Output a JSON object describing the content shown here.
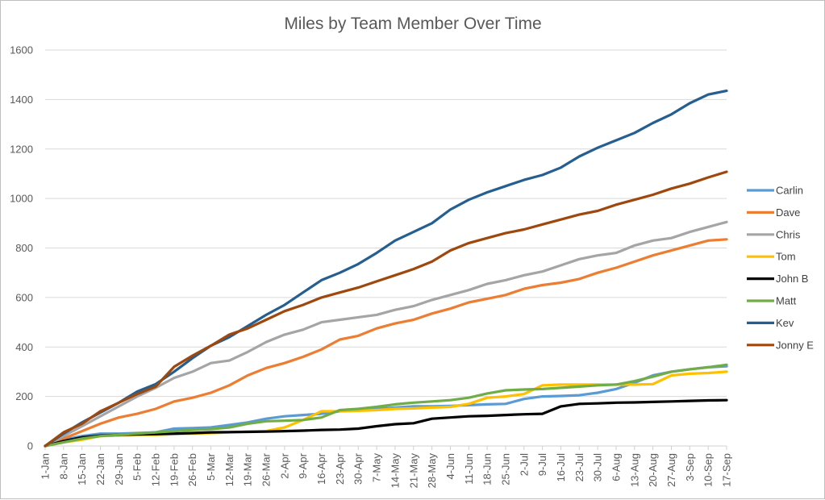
{
  "chart_data": {
    "type": "line",
    "title": "Miles by Team Member Over Time",
    "xlabel": "",
    "ylabel": "",
    "ylim": [
      0,
      1600
    ],
    "yticks": [
      0,
      200,
      400,
      600,
      800,
      1000,
      1200,
      1400,
      1600
    ],
    "grid": true,
    "legend_position": "right",
    "x_tick_labels": [
      "1-Jan",
      "8-Jan",
      "15-Jan",
      "22-Jan",
      "29-Jan",
      "5-Feb",
      "12-Feb",
      "19-Feb",
      "26-Feb",
      "5-Mar",
      "12-Mar",
      "19-Mar",
      "26-Mar",
      "2-Apr",
      "9-Apr",
      "16-Apr",
      "23-Apr",
      "30-Apr",
      "7-May",
      "14-May",
      "21-May",
      "28-May",
      "4-Jun",
      "11-Jun",
      "18-Jun",
      "25-Jun",
      "2-Jul",
      "9-Jul",
      "16-Jul",
      "23-Jul",
      "30-Jul",
      "6-Aug",
      "13-Aug",
      "20-Aug",
      "27-Aug",
      "3-Sep",
      "10-Sep",
      "17-Sep"
    ],
    "x": [
      "1-Jan",
      "8-Jan",
      "15-Jan",
      "22-Jan",
      "29-Jan",
      "5-Feb",
      "12-Feb",
      "19-Feb",
      "26-Feb",
      "5-Mar",
      "12-Mar",
      "19-Mar",
      "26-Mar",
      "2-Apr",
      "9-Apr",
      "16-Apr",
      "23-Apr",
      "30-Apr",
      "7-May",
      "14-May",
      "21-May",
      "28-May",
      "4-Jun",
      "11-Jun",
      "18-Jun",
      "25-Jun",
      "2-Jul",
      "9-Jul",
      "16-Jul",
      "23-Jul",
      "30-Jul",
      "6-Aug",
      "13-Aug",
      "20-Aug",
      "27-Aug",
      "3-Sep",
      "10-Sep",
      "17-Sep"
    ],
    "series": [
      {
        "name": "Carlin",
        "color": "#5b9bd5",
        "values": [
          0,
          25,
          40,
          50,
          50,
          52,
          55,
          70,
          72,
          75,
          85,
          95,
          110,
          120,
          125,
          130,
          140,
          145,
          150,
          155,
          160,
          160,
          162,
          165,
          168,
          170,
          190,
          200,
          202,
          205,
          215,
          230,
          255,
          285,
          300,
          310,
          318,
          322
        ]
      },
      {
        "name": "Dave",
        "color": "#ed7d31",
        "values": [
          0,
          30,
          60,
          90,
          115,
          130,
          150,
          180,
          195,
          215,
          245,
          285,
          315,
          335,
          360,
          390,
          430,
          445,
          475,
          495,
          510,
          535,
          555,
          580,
          595,
          610,
          635,
          650,
          660,
          675,
          700,
          720,
          745,
          770,
          790,
          810,
          830,
          835
        ]
      },
      {
        "name": "Chris",
        "color": "#a5a5a5",
        "values": [
          0,
          40,
          80,
          120,
          160,
          200,
          235,
          275,
          300,
          335,
          345,
          380,
          420,
          450,
          470,
          500,
          510,
          520,
          530,
          550,
          565,
          590,
          610,
          630,
          655,
          670,
          690,
          705,
          730,
          755,
          770,
          780,
          810,
          830,
          840,
          865,
          885,
          905
        ]
      },
      {
        "name": "Tom",
        "color": "#ffc000",
        "values": [
          0,
          15,
          25,
          40,
          42,
          45,
          45,
          48,
          50,
          52,
          55,
          58,
          60,
          75,
          105,
          140,
          140,
          142,
          145,
          150,
          152,
          155,
          158,
          170,
          195,
          200,
          210,
          245,
          248,
          248,
          248,
          248,
          248,
          250,
          285,
          292,
          295,
          300
        ]
      },
      {
        "name": "John B",
        "color": "#000000",
        "values": [
          0,
          20,
          35,
          42,
          45,
          47,
          48,
          50,
          52,
          55,
          56,
          57,
          58,
          60,
          62,
          65,
          66,
          70,
          80,
          88,
          92,
          110,
          115,
          120,
          122,
          125,
          128,
          130,
          160,
          170,
          172,
          175,
          176,
          178,
          180,
          182,
          184,
          185
        ]
      },
      {
        "name": "Matt",
        "color": "#70ad47",
        "values": [
          0,
          15,
          30,
          40,
          45,
          50,
          55,
          60,
          65,
          68,
          75,
          90,
          100,
          102,
          105,
          115,
          145,
          150,
          158,
          168,
          175,
          180,
          185,
          195,
          212,
          225,
          228,
          230,
          235,
          240,
          245,
          248,
          262,
          280,
          300,
          310,
          318,
          328
        ]
      },
      {
        "name": "Kev",
        "color": "#255e91",
        "values": [
          0,
          50,
          95,
          135,
          175,
          220,
          250,
          300,
          355,
          405,
          440,
          485,
          530,
          570,
          620,
          670,
          700,
          735,
          780,
          830,
          865,
          900,
          955,
          995,
          1025,
          1050,
          1075,
          1095,
          1125,
          1170,
          1205,
          1235,
          1265,
          1305,
          1340,
          1385,
          1420,
          1435
        ]
      },
      {
        "name": "Jonny E",
        "color": "#9e480e",
        "values": [
          0,
          55,
          90,
          140,
          175,
          210,
          240,
          320,
          365,
          405,
          450,
          475,
          510,
          545,
          570,
          600,
          620,
          640,
          665,
          690,
          715,
          745,
          790,
          820,
          840,
          860,
          875,
          895,
          915,
          935,
          950,
          975,
          995,
          1015,
          1040,
          1060,
          1085,
          1108
        ]
      }
    ]
  }
}
